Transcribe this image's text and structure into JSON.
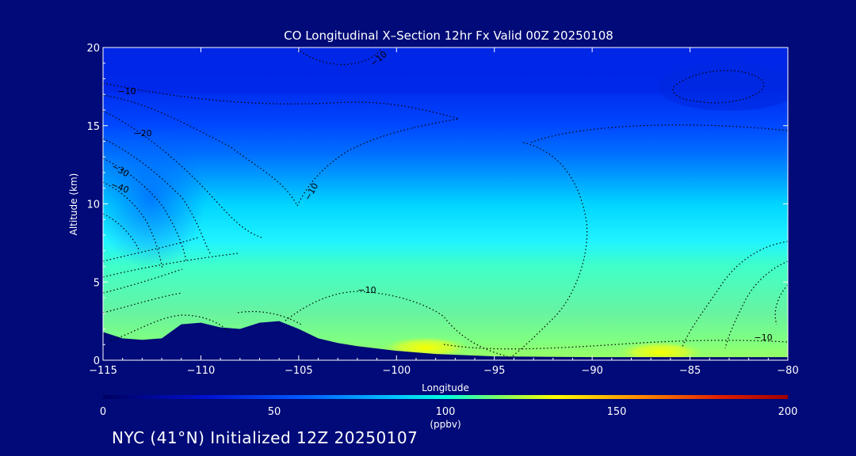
{
  "chart_data": {
    "type": "heatmap",
    "title": "CO Longitudinal X–Section 12hr  Fx Valid 00Z 20250108",
    "xlabel": "Longitude",
    "ylabel": "Altitude (km)",
    "xlim": [
      -115,
      -80
    ],
    "ylim": [
      0,
      20
    ],
    "x_ticks": [
      -115,
      -110,
      -105,
      -100,
      -95,
      -90,
      -85,
      -80
    ],
    "x_tick_labels": [
      "−115",
      "−110",
      "−105",
      "−100",
      "−95",
      "−90",
      "−85",
      "−80"
    ],
    "y_ticks": [
      0,
      5,
      10,
      15,
      20
    ],
    "y_tick_labels": [
      "0",
      "5",
      "10",
      "15",
      "20"
    ],
    "colorbar": {
      "min": 0,
      "max": 200,
      "ticks": [
        0,
        50,
        100,
        150,
        200
      ],
      "tick_labels": [
        "0",
        "50",
        "100",
        "150",
        "200"
      ],
      "unit": "(ppbv)"
    },
    "filled_field": {
      "description_levels_km": [
        0,
        1,
        2,
        3,
        4,
        5,
        6,
        7,
        8,
        9,
        10,
        11,
        12,
        13,
        14,
        15,
        16,
        17,
        18,
        19,
        20
      ],
      "west_profile_ppbv": [
        95,
        90,
        85,
        82,
        80,
        78,
        72,
        68,
        66,
        64,
        62,
        52,
        44,
        38,
        32,
        28,
        24,
        18,
        16,
        14,
        14
      ],
      "east_profile_ppbv": [
        105,
        90,
        84,
        82,
        80,
        78,
        75,
        72,
        70,
        68,
        64,
        54,
        46,
        40,
        36,
        32,
        26,
        20,
        16,
        14,
        14
      ]
    },
    "terrain_km": [
      [
        -115,
        1.8
      ],
      [
        -114,
        1.4
      ],
      [
        -113,
        1.3
      ],
      [
        -112,
        1.4
      ],
      [
        -111,
        2.3
      ],
      [
        -110,
        2.4
      ],
      [
        -109,
        2.1
      ],
      [
        -108,
        2.0
      ],
      [
        -107,
        2.4
      ],
      [
        -106,
        2.5
      ],
      [
        -105,
        2.0
      ],
      [
        -104,
        1.4
      ],
      [
        -103,
        1.1
      ],
      [
        -102,
        0.9
      ],
      [
        -100,
        0.6
      ],
      [
        -98,
        0.4
      ],
      [
        -95,
        0.25
      ],
      [
        -90,
        0.2
      ],
      [
        -85,
        0.2
      ],
      [
        -82,
        0.2
      ],
      [
        -80,
        0.2
      ]
    ],
    "contour_labels": [
      "−10",
      "−10",
      "−20",
      "−30",
      "−40",
      "−10",
      "−10",
      "−10"
    ],
    "hotspots": [
      {
        "lon": -98.5,
        "alt": 0.8,
        "ppbv": 135
      },
      {
        "lon": -86.5,
        "alt": 0.5,
        "ppbv": 140
      }
    ],
    "colors": [
      "#000a78",
      "#0030ff",
      "#00a0ff",
      "#00ffff",
      "#60ffa0",
      "#ffff00",
      "#ff8000",
      "#c00000"
    ]
  },
  "footer": "NYC (41°N) Initialized 12Z 20250107"
}
